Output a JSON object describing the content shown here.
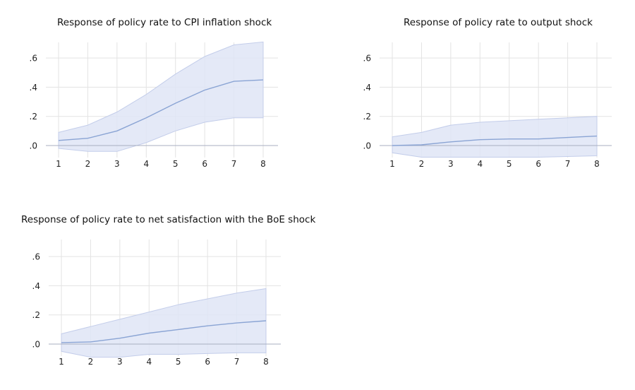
{
  "chart_data": [
    {
      "type": "area",
      "title": "Response of policy rate to CPI inflation shock",
      "x": [
        1,
        2,
        3,
        4,
        5,
        6,
        7,
        8
      ],
      "y_ticks": [
        ".0",
        ".2",
        ".4",
        ".6"
      ],
      "y_tick_values": [
        0,
        0.2,
        0.4,
        0.6
      ],
      "ylim": [
        -0.1,
        0.72
      ],
      "grid": true,
      "series": [
        {
          "values": [
            0.035,
            0.05,
            0.1,
            0.19,
            0.29,
            0.38,
            0.44,
            0.45
          ]
        }
      ],
      "band_upper": [
        0.09,
        0.14,
        0.23,
        0.35,
        0.49,
        0.61,
        0.69,
        0.71
      ],
      "band_lower": [
        -0.02,
        -0.04,
        -0.04,
        0.02,
        0.1,
        0.16,
        0.19,
        0.19
      ],
      "zero_line": 0,
      "colors": {
        "line": "#8aa4d4",
        "band": "#dfe5f6",
        "band_edge": "#c3cdea",
        "zero": "#a9afc2",
        "grid": "#e3e3e3"
      }
    },
    {
      "type": "area",
      "title": "Response of policy rate to output shock",
      "x": [
        1,
        2,
        3,
        4,
        5,
        6,
        7,
        8
      ],
      "y_ticks": [
        ".0",
        ".2",
        ".4",
        ".6"
      ],
      "y_tick_values": [
        0,
        0.2,
        0.4,
        0.6
      ],
      "ylim": [
        -0.1,
        0.72
      ],
      "grid": true,
      "series": [
        {
          "values": [
            0.0,
            0.005,
            0.025,
            0.04,
            0.045,
            0.045,
            0.055,
            0.065
          ]
        }
      ],
      "band_upper": [
        0.06,
        0.09,
        0.14,
        0.16,
        0.17,
        0.18,
        0.19,
        0.2
      ],
      "band_lower": [
        -0.05,
        -0.08,
        -0.08,
        -0.08,
        -0.08,
        -0.08,
        -0.075,
        -0.07
      ],
      "zero_line": 0,
      "colors": {
        "line": "#8aa4d4",
        "band": "#dfe5f6",
        "band_edge": "#c3cdea",
        "zero": "#a9afc2",
        "grid": "#e3e3e3"
      }
    },
    {
      "type": "area",
      "title": "Response of policy rate to net satisfaction with the BoE shock",
      "x": [
        1,
        2,
        3,
        4,
        5,
        6,
        7,
        8
      ],
      "y_ticks": [
        ".0",
        ".2",
        ".4",
        ".6"
      ],
      "y_tick_values": [
        0,
        0.2,
        0.4,
        0.6
      ],
      "ylim": [
        -0.1,
        0.72
      ],
      "grid": true,
      "series": [
        {
          "values": [
            0.01,
            0.015,
            0.04,
            0.075,
            0.1,
            0.125,
            0.145,
            0.16
          ]
        }
      ],
      "band_upper": [
        0.07,
        0.12,
        0.17,
        0.22,
        0.27,
        0.31,
        0.35,
        0.38
      ],
      "band_lower": [
        -0.05,
        -0.09,
        -0.09,
        -0.07,
        -0.07,
        -0.065,
        -0.06,
        -0.06
      ],
      "zero_line": 0,
      "colors": {
        "line": "#8aa4d4",
        "band": "#dfe5f6",
        "band_edge": "#c3cdea",
        "zero": "#a9afc2",
        "grid": "#e3e3e3"
      }
    }
  ]
}
